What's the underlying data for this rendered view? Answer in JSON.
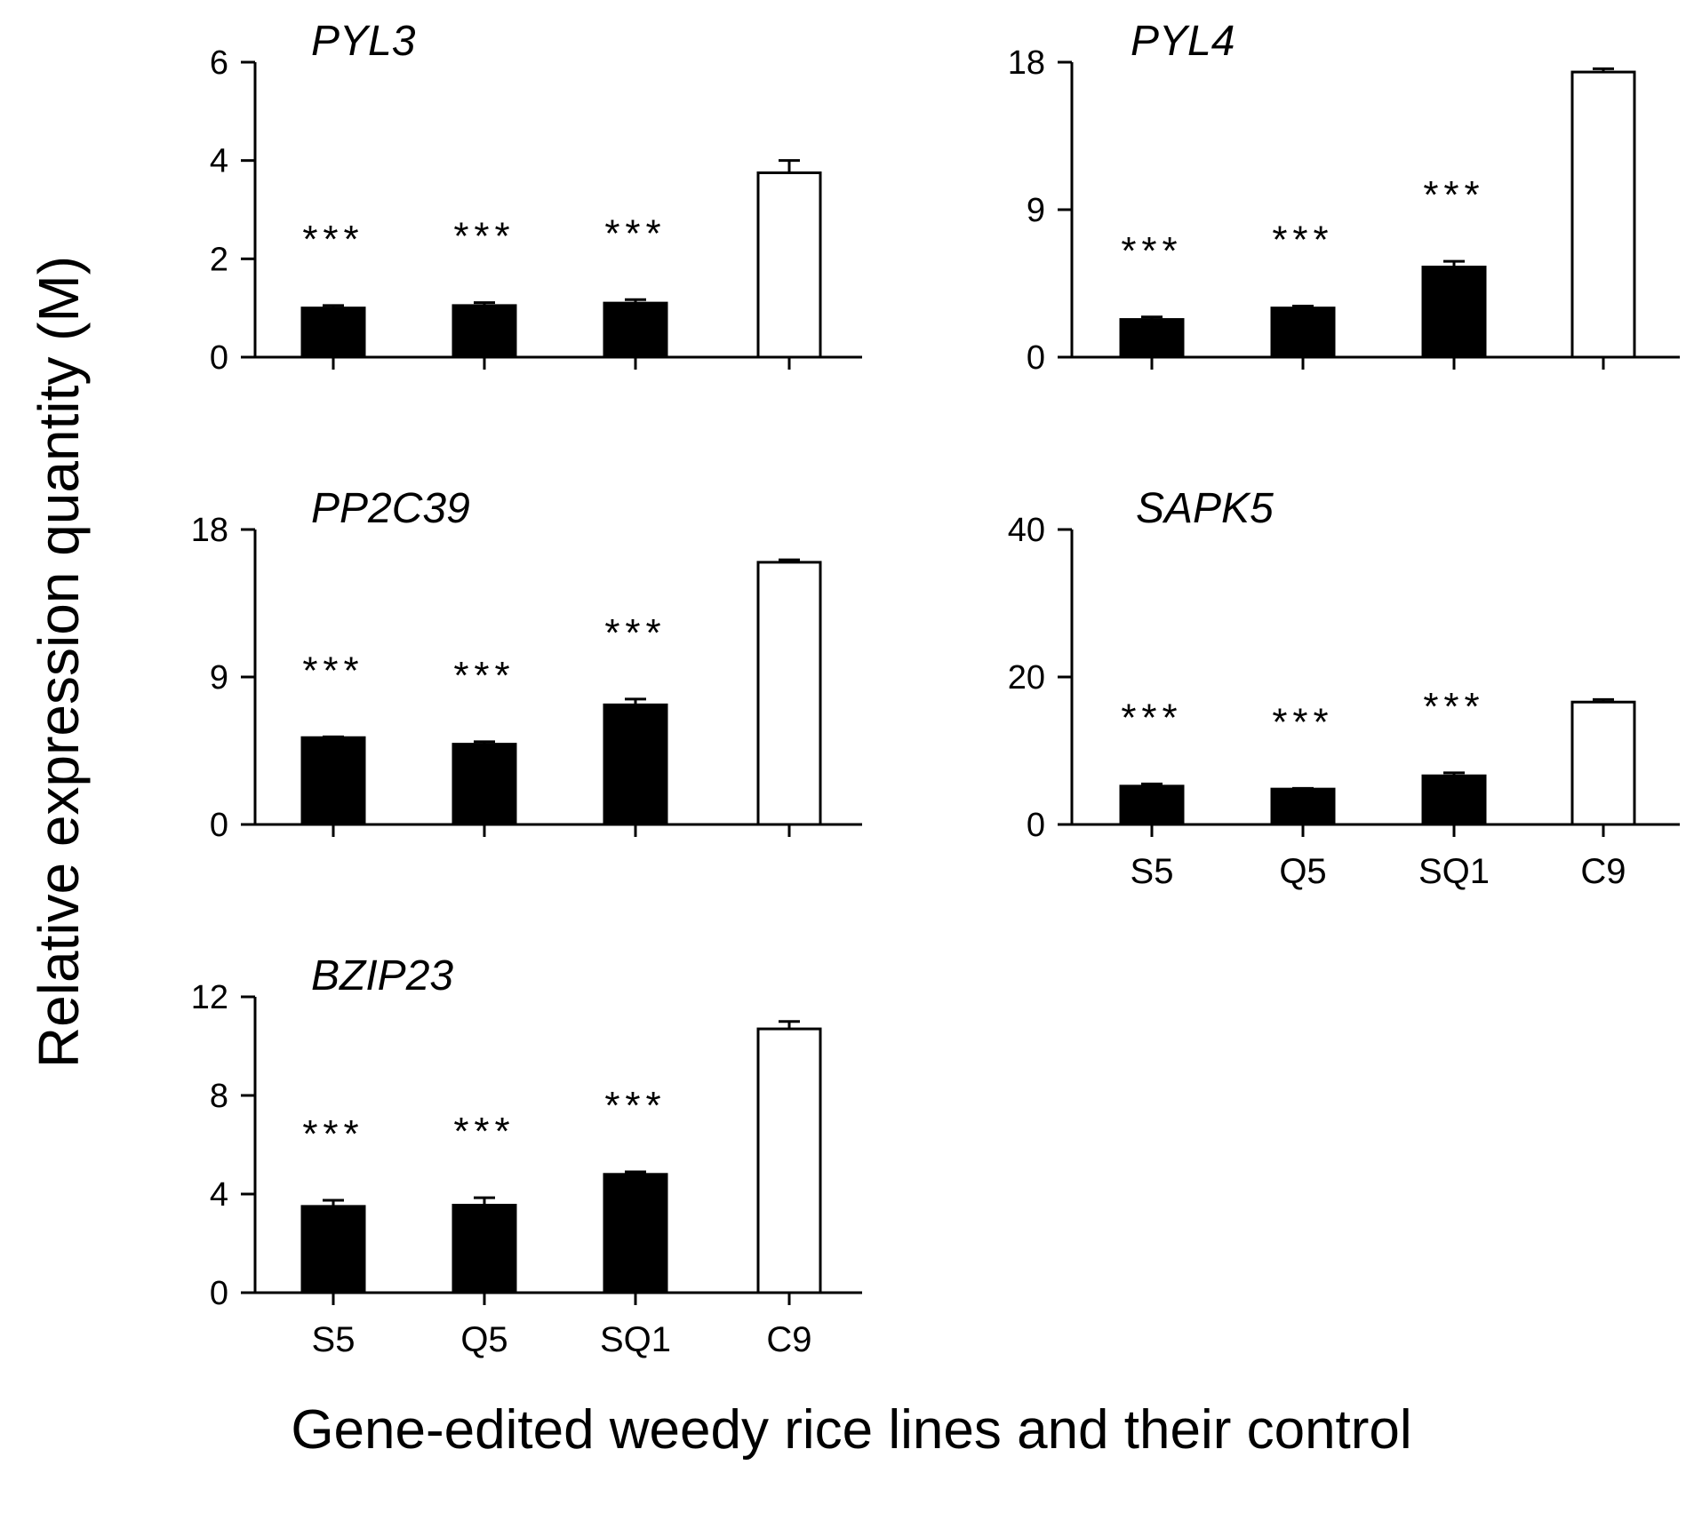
{
  "chart_data": [
    {
      "type": "bar",
      "title": "PYL3",
      "categories": [
        "S5",
        "Q5",
        "SQ1",
        "C9"
      ],
      "values": [
        1.0,
        1.05,
        1.1,
        3.75
      ],
      "errors": [
        0.05,
        0.06,
        0.07,
        0.25
      ],
      "fills": [
        "#000000",
        "#000000",
        "#000000",
        "#ffffff"
      ],
      "significance": [
        "***",
        "***",
        "***",
        ""
      ],
      "yticks": [
        "0",
        "2",
        "4",
        "6"
      ],
      "ylim": [
        0,
        6
      ],
      "show_xlabels": false
    },
    {
      "type": "bar",
      "title": "PYL4",
      "categories": [
        "S5",
        "Q5",
        "SQ1",
        "C9"
      ],
      "values": [
        2.3,
        3.0,
        5.5,
        17.4
      ],
      "errors": [
        0.15,
        0.12,
        0.35,
        0.2
      ],
      "fills": [
        "#000000",
        "#000000",
        "#000000",
        "#ffffff"
      ],
      "significance": [
        "***",
        "***",
        "***",
        ""
      ],
      "yticks": [
        "0",
        "9",
        "18"
      ],
      "ylim": [
        0,
        18
      ],
      "show_xlabels": false
    },
    {
      "type": "bar",
      "title": "PP2C39",
      "categories": [
        "S5",
        "Q5",
        "SQ1",
        "C9"
      ],
      "values": [
        5.3,
        4.9,
        7.3,
        16.0
      ],
      "errors": [
        0.05,
        0.15,
        0.35,
        0.15
      ],
      "fills": [
        "#000000",
        "#000000",
        "#000000",
        "#ffffff"
      ],
      "significance": [
        "***",
        "***",
        "***",
        ""
      ],
      "yticks": [
        "0",
        "9",
        "18"
      ],
      "ylim": [
        0,
        18
      ],
      "show_xlabels": false
    },
    {
      "type": "bar",
      "title": "SAPK5",
      "categories": [
        "S5",
        "Q5",
        "SQ1",
        "C9"
      ],
      "values": [
        5.2,
        4.8,
        6.6,
        16.6
      ],
      "errors": [
        0.3,
        0.1,
        0.4,
        0.35
      ],
      "fills": [
        "#000000",
        "#000000",
        "#000000",
        "#ffffff"
      ],
      "significance": [
        "***",
        "***",
        "***",
        ""
      ],
      "yticks": [
        "0",
        "20",
        "40"
      ],
      "ylim": [
        0,
        40
      ],
      "show_xlabels": true
    },
    {
      "type": "bar",
      "title": "BZIP23",
      "categories": [
        "S5",
        "Q5",
        "SQ1",
        "C9"
      ],
      "values": [
        3.5,
        3.55,
        4.8,
        10.7
      ],
      "errors": [
        0.25,
        0.3,
        0.1,
        0.3
      ],
      "fills": [
        "#000000",
        "#000000",
        "#000000",
        "#ffffff"
      ],
      "significance": [
        "***",
        "***",
        "***",
        ""
      ],
      "yticks": [
        "0",
        "4",
        "8",
        "12"
      ],
      "ylim": [
        0,
        12
      ],
      "show_xlabels": true
    }
  ],
  "ylabel": "Relative expression quantity (M)",
  "xlabel": "Gene-edited weedy rice lines and their control"
}
